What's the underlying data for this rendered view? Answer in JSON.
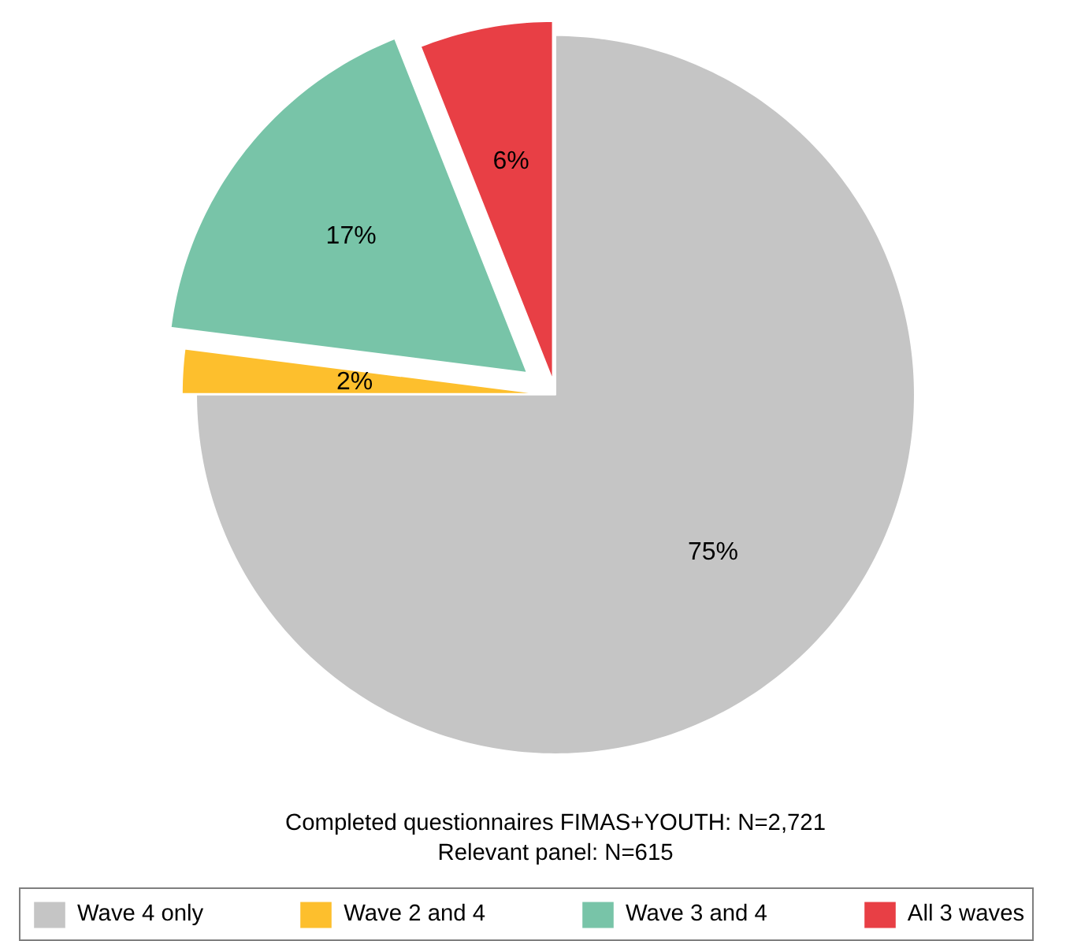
{
  "chart_data": {
    "type": "pie",
    "categories": [
      "Wave 4 only",
      "Wave 2 and 4",
      "Wave 3 and 4",
      "All 3 waves"
    ],
    "values": [
      75,
      2,
      17,
      6
    ],
    "colors": [
      "#c5c5c5",
      "#fdbf2d",
      "#78c4a8",
      "#e83f45"
    ],
    "value_labels": [
      "75%",
      "2%",
      "17%",
      "6%"
    ],
    "legend": "bottom",
    "annotations": [
      "Completed questionnaires FIMAS+YOUTH: N=2,721",
      "Relevant panel: N=615"
    ]
  }
}
